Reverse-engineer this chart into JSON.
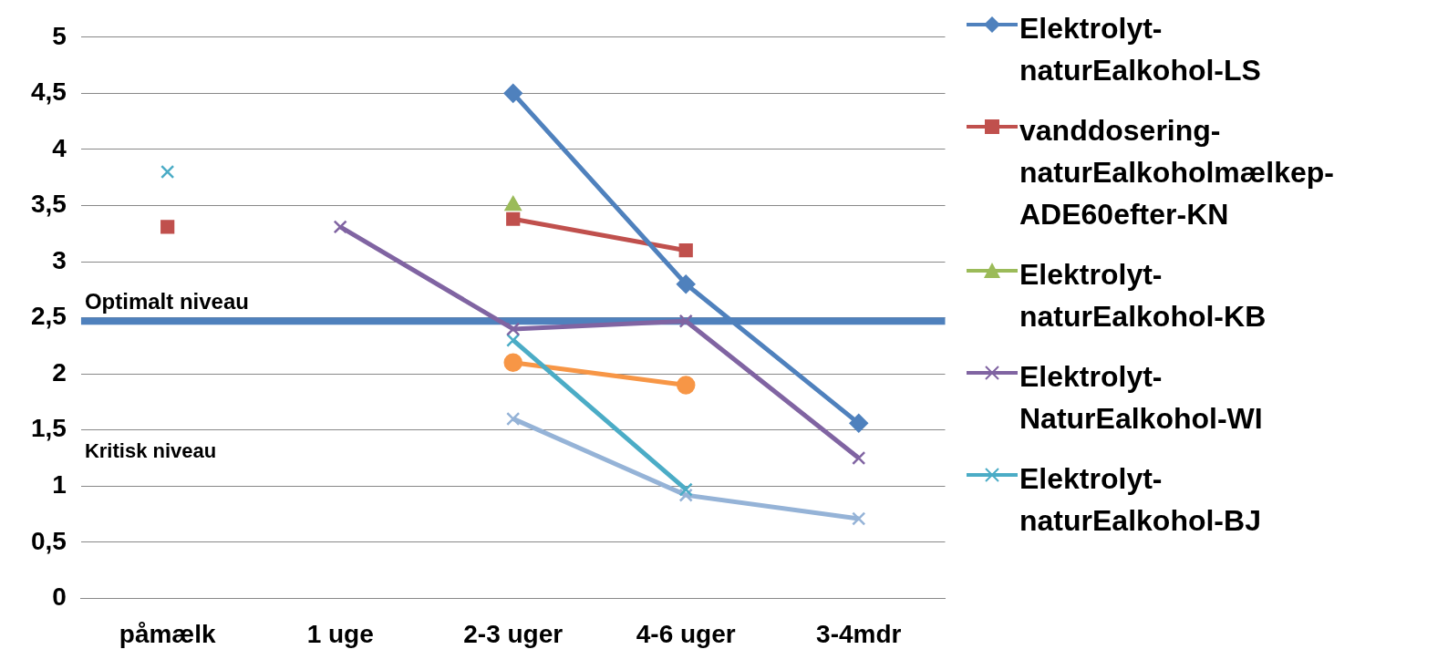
{
  "chart_data": {
    "type": "line",
    "categories": [
      "påmælk",
      "1 uge",
      "2-3 uger",
      "4-6 uger",
      "3-4mdr"
    ],
    "series": [
      {
        "name": "Elektrolyt-naturEalkohol-LS",
        "color": "#4f81bd",
        "marker": "diamond",
        "values": [
          null,
          null,
          4.5,
          2.8,
          1.56
        ]
      },
      {
        "name": "vanddosering-naturEalkoholmælkep-ADE60efter-KN",
        "color": "#c0504d",
        "marker": "square",
        "values": [
          3.31,
          null,
          3.38,
          3.1,
          null
        ]
      },
      {
        "name": "Elektrolyt-naturEalkohol-KB",
        "color": "#9bbb59",
        "marker": "triangle",
        "values": [
          null,
          null,
          3.5,
          null,
          null
        ]
      },
      {
        "name": "Elektrolyt-NaturEalkohol-WI",
        "color": "#8064a2",
        "marker": "cross",
        "values": [
          null,
          3.31,
          2.4,
          2.47,
          1.25
        ]
      },
      {
        "name": "Elektrolyt-naturEalkohol-BJ",
        "color": "#4bacc6",
        "marker": "cross",
        "values": [
          3.8,
          null,
          2.3,
          0.97,
          null
        ]
      },
      {
        "color": "#f79646",
        "marker": "circle",
        "values": [
          null,
          null,
          2.1,
          1.9,
          null
        ]
      },
      {
        "color": "#95b3d7",
        "marker": "cross",
        "values": [
          null,
          null,
          1.6,
          0.92,
          0.71
        ]
      }
    ],
    "ylim": [
      0,
      5
    ],
    "yticks": [
      0,
      {
        "value": 0.5,
        "label": "0,5"
      },
      1,
      {
        "value": 1.5,
        "label": "1,5"
      },
      2,
      {
        "value": 2.5,
        "label": "2,5"
      },
      3,
      {
        "value": 3.5,
        "label": "3,5"
      },
      4,
      {
        "value": 4.5,
        "label": "4,5"
      },
      5
    ],
    "ref_lines": [
      {
        "axis": "y",
        "value": 2.47,
        "label": "Optimalt niveau",
        "color": "#4f81bd"
      }
    ],
    "annotations": [
      "Kritisk niveau"
    ],
    "grid": "y",
    "legend": "right",
    "line_style": "solid"
  }
}
